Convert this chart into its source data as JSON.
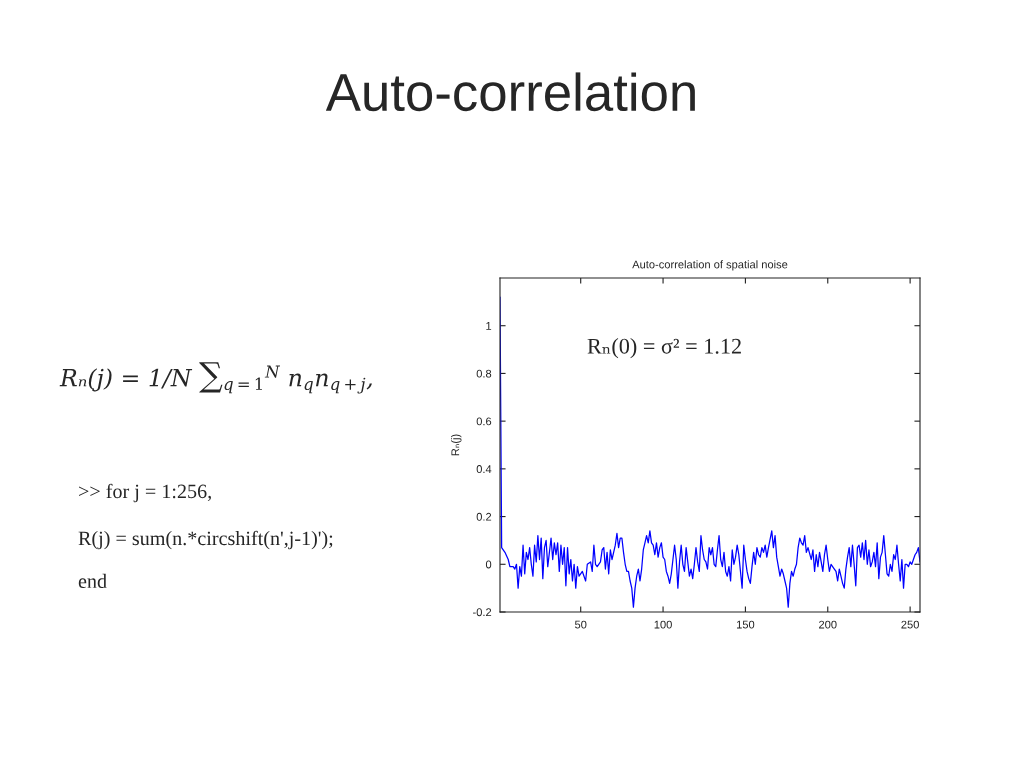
{
  "chart_data": {
    "type": "line",
    "title": "Auto-correlation",
    "subtitle": "Auto-correlation of spatial noise",
    "ylabel": "Rₙ(j)",
    "annotations": [
      "Rₙ(0) = σ² = 1.12",
      "Rₙ(j) = 1/N ∑$_{q=1}$$^{N}$ n$_{q}$n$_{q+j}$,",
      ">> for j = 1:256,",
      "R(j) = sum(n.*circshift(n',j-1)');",
      "end"
    ],
    "xlim": [
      1,
      256
    ],
    "xticks": [
      50,
      100,
      150,
      200,
      250
    ],
    "ylim": [
      -0.2,
      1.2
    ],
    "yticks": [
      -0.2,
      0,
      0.2,
      0.4,
      0.6,
      0.8,
      1
    ],
    "series": [
      {
        "color": "#0000ff",
        "x": [
          1,
          2,
          4,
          6,
          7,
          9,
          10,
          11,
          12,
          13,
          14,
          15,
          16,
          17,
          18,
          19,
          20,
          21,
          22,
          23,
          24,
          25,
          26,
          27,
          28,
          29,
          30,
          32,
          33,
          34,
          35,
          36,
          37,
          38,
          39,
          40,
          41,
          42,
          43,
          44,
          45,
          46,
          47,
          48,
          49,
          51,
          53,
          54,
          56,
          57,
          58,
          59,
          60,
          62,
          63,
          64,
          65,
          66,
          67,
          68,
          69,
          70,
          71,
          72,
          73,
          74,
          75,
          76,
          77,
          78,
          79,
          80,
          81,
          82,
          83,
          84,
          85,
          86,
          87,
          88,
          89,
          90,
          91,
          92,
          93,
          94,
          95,
          96,
          97,
          98,
          99,
          100,
          101,
          102,
          103,
          104,
          105,
          106,
          107,
          108,
          109,
          110,
          111,
          112,
          113,
          114,
          115,
          116,
          117,
          118,
          119,
          120,
          121,
          122,
          123,
          124,
          125,
          126,
          127,
          128,
          129,
          130,
          131,
          132,
          133,
          134,
          135,
          136,
          137,
          138,
          139,
          140,
          141,
          142,
          143,
          144,
          145,
          146,
          147,
          148,
          149,
          150,
          151,
          152,
          153,
          154,
          155,
          156,
          157,
          158,
          159,
          160,
          161,
          162,
          163,
          164,
          166,
          167,
          168,
          169,
          170,
          171,
          172,
          173,
          174,
          175,
          176,
          177,
          178,
          179,
          180,
          181,
          182,
          183,
          184,
          185,
          186,
          187,
          188,
          190,
          191,
          192,
          193,
          194,
          195,
          196,
          197,
          198,
          199,
          200,
          201,
          202,
          204,
          205,
          206,
          207,
          208,
          209,
          210,
          211,
          212,
          213,
          214,
          215,
          216,
          217,
          218,
          219,
          220,
          221,
          222,
          223,
          224,
          225,
          226,
          227,
          228,
          229,
          230,
          231,
          232,
          233,
          234,
          235,
          236,
          237,
          238,
          239,
          240,
          241,
          242,
          243,
          244,
          245,
          246,
          247,
          248,
          249,
          250,
          251,
          252,
          253,
          254,
          255,
          256
        ],
        "values": [
          1.12,
          0.07,
          0.05,
          0.02,
          -0.01,
          -0.01,
          -0.02,
          0.0,
          -0.1,
          -0.01,
          -0.05,
          0.08,
          -0.04,
          0.05,
          0.02,
          0.07,
          0.0,
          -0.05,
          0.08,
          0.01,
          0.12,
          0.02,
          0.11,
          -0.06,
          0.07,
          0.1,
          -0.01,
          0.11,
          0.02,
          0.09,
          0.04,
          0.09,
          -0.03,
          0.08,
          0.0,
          0.07,
          -0.09,
          0.07,
          -0.04,
          0.02,
          -0.07,
          0.0,
          -0.1,
          -0.01,
          -0.05,
          -0.03,
          -0.07,
          0.0,
          0.01,
          -0.03,
          0.08,
          0.0,
          -0.01,
          0.01,
          0.06,
          0.07,
          -0.02,
          0.05,
          -0.04,
          0.06,
          0.02,
          0.05,
          0.08,
          0.13,
          0.07,
          0.11,
          0.11,
          0.05,
          0.0,
          -0.03,
          -0.03,
          -0.07,
          -0.1,
          -0.18,
          -0.1,
          -0.05,
          -0.02,
          -0.07,
          -0.02,
          0.06,
          0.09,
          0.12,
          0.09,
          0.14,
          0.09,
          0.08,
          0.04,
          0.09,
          0.03,
          0.07,
          0.09,
          0.03,
          0.02,
          -0.03,
          -0.05,
          -0.08,
          -0.04,
          0.02,
          0.08,
          0.02,
          -0.1,
          0.01,
          0.08,
          0.0,
          -0.03,
          0.07,
          0.01,
          -0.05,
          -0.02,
          -0.06,
          0.0,
          0.07,
          0.01,
          -0.03,
          0.12,
          0.06,
          0.02,
          0.01,
          -0.02,
          0.07,
          0.04,
          0.07,
          0.0,
          -0.01,
          0.06,
          0.12,
          0.02,
          -0.01,
          0.05,
          -0.03,
          -0.05,
          -0.01,
          -0.07,
          0.06,
          0.0,
          0.03,
          0.08,
          0.04,
          -0.03,
          -0.1,
          0.08,
          0.02,
          -0.03,
          -0.06,
          -0.08,
          -0.01,
          0.05,
          0.0,
          0.07,
          0.04,
          0.03,
          0.07,
          0.05,
          0.08,
          0.03,
          0.07,
          0.14,
          0.07,
          0.12,
          0.03,
          -0.01,
          -0.05,
          -0.02,
          -0.04,
          -0.07,
          -0.1,
          -0.18,
          -0.08,
          -0.03,
          -0.05,
          -0.02,
          0.0,
          0.07,
          0.11,
          0.09,
          0.08,
          0.12,
          0.05,
          0.07,
          0.02,
          0.06,
          -0.03,
          0.04,
          -0.01,
          0.05,
          0.01,
          -0.03,
          0.04,
          0.08,
          0.02,
          -0.03,
          0.0,
          -0.02,
          -0.03,
          -0.07,
          -0.02,
          -0.05,
          -0.08,
          -0.1,
          -0.02,
          0.03,
          0.07,
          -0.01,
          0.08,
          0.0,
          -0.09,
          0.07,
          0.08,
          0.03,
          0.09,
          0.02,
          0.1,
          0.0,
          0.06,
          -0.01,
          0.01,
          0.05,
          -0.01,
          0.09,
          -0.06,
          0.03,
          0.05,
          0.12,
          0.04,
          -0.04,
          -0.05,
          0.0,
          -0.03,
          0.04,
          0.02,
          0.08,
          0.0,
          -0.07,
          0.02,
          -0.1,
          0.0,
          0.0,
          -0.01,
          0.01,
          0.0,
          0.02,
          0.04,
          0.05,
          0.07,
          0.01
        ]
      }
    ]
  }
}
